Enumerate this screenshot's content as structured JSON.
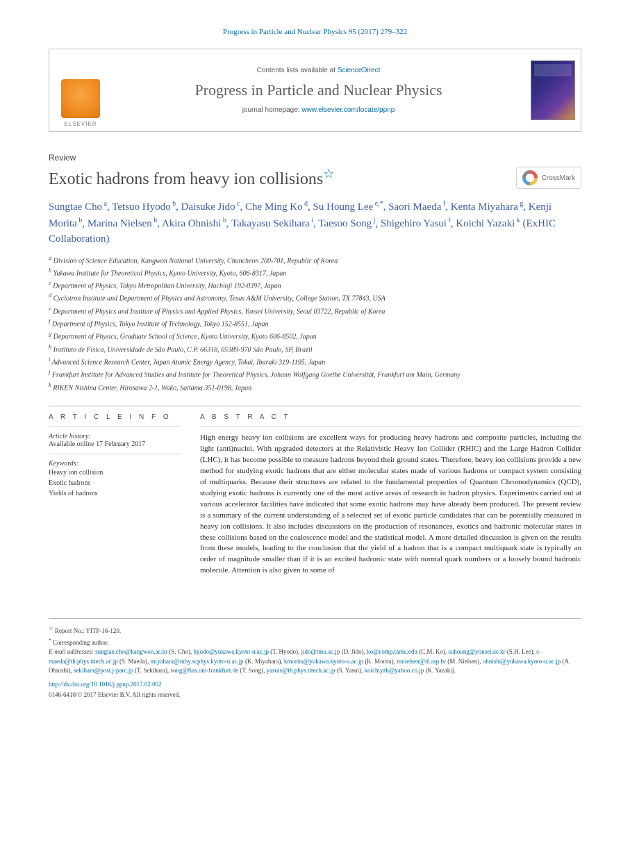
{
  "running_head": "Progress in Particle and Nuclear Physics 95 (2017) 279–322",
  "masthead": {
    "contents_prefix": "Contents lists available at ",
    "contents_link": "ScienceDirect",
    "journal_name": "Progress in Particle and Nuclear Physics",
    "homepage_prefix": "journal homepage: ",
    "homepage_link": "www.elsevier.com/locate/ppnp",
    "publisher": "ELSEVIER"
  },
  "article": {
    "type": "Review",
    "title": "Exotic hadrons from heavy ion collisions",
    "title_note": "☆",
    "crossmark": "CrossMark"
  },
  "authors": [
    {
      "name": "Sungtae Cho",
      "aff": "a"
    },
    {
      "name": "Tetsuo Hyodo",
      "aff": "b"
    },
    {
      "name": "Daisuke Jido",
      "aff": "c"
    },
    {
      "name": "Che Ming Ko",
      "aff": "d"
    },
    {
      "name": "Su Houng Lee",
      "aff": "e,*"
    },
    {
      "name": "Saori Maeda",
      "aff": "f"
    },
    {
      "name": "Kenta Miyahara",
      "aff": "g"
    },
    {
      "name": "Kenji Morita",
      "aff": "b"
    },
    {
      "name": "Marina Nielsen",
      "aff": "h"
    },
    {
      "name": "Akira Ohnishi",
      "aff": "b"
    },
    {
      "name": "Takayasu Sekihara",
      "aff": "i"
    },
    {
      "name": "Taesoo Song",
      "aff": "j"
    },
    {
      "name": "Shigehiro Yasui",
      "aff": "f"
    },
    {
      "name": "Koichi Yazaki",
      "aff": "k"
    }
  ],
  "authors_suffix": " (ExHIC Collaboration)",
  "affiliations": [
    {
      "key": "a",
      "text": "Division of Science Education, Kangwon National University, Chuncheon 200-701, Republic of Korea"
    },
    {
      "key": "b",
      "text": "Yukawa Institute for Theoretical Physics, Kyoto University, Kyoto, 606-8317, Japan"
    },
    {
      "key": "c",
      "text": "Department of Physics, Tokyo Metropolitan University, Hachioji 192-0397, Japan"
    },
    {
      "key": "d",
      "text": "Cyclotron Institute and Department of Physics and Astronomy, Texas A&M University, College Station, TX 77843, USA"
    },
    {
      "key": "e",
      "text": "Department of Physics and Institute of Physics and Applied Physics, Yonsei University, Seoul 03722, Republic of Korea"
    },
    {
      "key": "f",
      "text": "Department of Physics, Tokyo Institute of Technology, Tokyo 152-8551, Japan"
    },
    {
      "key": "g",
      "text": "Department of Physics, Graduate School of Science, Kyoto University, Kyoto 606-8502, Japan"
    },
    {
      "key": "h",
      "text": "Instituto de Física, Universidade de São Paulo, C.P. 66318, 05389-970 São Paulo, SP, Brazil"
    },
    {
      "key": "i",
      "text": "Advanced Science Research Center, Japan Atomic Energy Agency, Tokai, Ibaraki 319-1195, Japan"
    },
    {
      "key": "j",
      "text": "Frankfurt Institute for Advanced Studies and Institute for Theoretical Physics, Johann Wolfgang Goethe Universität, Frankfurt am Main, Germany"
    },
    {
      "key": "k",
      "text": "RIKEN Nishina Center, Hirosawa 2-1, Wako, Saitama 351-0198, Japan"
    }
  ],
  "info": {
    "section_head": "A R T I C L E   I N F O",
    "history_label": "Article history:",
    "history_text": "Available online 17 February 2017",
    "keywords_label": "Keywords:",
    "keywords": [
      "Heavy ion collision",
      "Exotic hadrons",
      "Yields of hadrons"
    ]
  },
  "abstract": {
    "head": "A B S T R A C T",
    "text": "High energy heavy ion collisions are excellent ways for producing heavy hadrons and composite particles, including the light (anti)nuclei. With upgraded detectors at the Relativistic Heavy Ion Collider (RHIC) and the Large Hadron Collider (LHC), it has become possible to measure hadrons beyond their ground states. Therefore, heavy ion collisions provide a new method for studying exotic hadrons that are either molecular states made of various hadrons or compact system consisting of multiquarks. Because their structures are related to the fundamental properties of Quantum Chromodynamics (QCD), studying exotic hadrons is currently one of the most active areas of research in hadron physics. Experiments carried out at various accelerator facilities have indicated that some exotic hadrons may have already been produced. The present review is a summary of the current understanding of a selected set of exotic particle candidates that can be potentially measured in heavy ion collisions. It also includes discussions on the production of resonances, exotics and hadronic molecular states in these collisions based on the coalescence model and the statistical model. A more detailed discussion is given on the results from these models, leading to the conclusion that the yield of a hadron that is a compact multiquark state is typically an order of magnitude smaller than if it is an excited hadronic state with normal quark numbers or a loosely bound hadronic molecule. Attention is also given to some of"
  },
  "footnotes": {
    "report": "Report No.: YITP-16-120.",
    "corresponding": "Corresponding author.",
    "emails_label": "E-mail addresses:",
    "emails": [
      {
        "addr": "sungtae.cho@kangwon.ac.kr",
        "who": "(S. Cho)"
      },
      {
        "addr": "hyodo@yukawa.kyoto-u.ac.jp",
        "who": "(T. Hyodo)"
      },
      {
        "addr": "jido@tmu.ac.jp",
        "who": "(D. Jido)"
      },
      {
        "addr": "ko@comp.tamu.edu",
        "who": "(C.M. Ko)"
      },
      {
        "addr": "suhoung@yonsei.ac.kr",
        "who": "(S.H. Lee)"
      },
      {
        "addr": "s-maeda@th.phys.titech.ac.jp",
        "who": "(S. Maeda)"
      },
      {
        "addr": "miyahara@ruby.scphys.kyoto-u.ac.jp",
        "who": "(K. Miyahara)"
      },
      {
        "addr": "kmorita@yukawa.kyoto-u.ac.jp",
        "who": "(K. Morita)"
      },
      {
        "addr": "mnielsen@if.usp.br",
        "who": "(M. Nielsen)"
      },
      {
        "addr": "ohnishi@yukawa.kyoto-u.ac.jp",
        "who": "(A. Ohnishi)"
      },
      {
        "addr": "sekihara@post.j-parc.jp",
        "who": "(T. Sekihara)"
      },
      {
        "addr": "song@fias.uni-frankfurt.de",
        "who": "(T. Song)"
      },
      {
        "addr": "yasuis@th.phys.titech.ac.jp",
        "who": "(S. Yasui)"
      },
      {
        "addr": "koichiyzk@yahoo.co.jp",
        "who": "(K. Yazaki)"
      }
    ],
    "doi": "http://dx.doi.org/10.1016/j.ppnp.2017.02.002",
    "issn_copyright": "0146-6410/© 2017 Elsevier B.V. All rights reserved."
  },
  "colors": {
    "link": "#0066a1",
    "author": "#3b5da0",
    "text": "#2b2b2b",
    "muted": "#5f5f5f",
    "rule": "#b5b5b5"
  }
}
